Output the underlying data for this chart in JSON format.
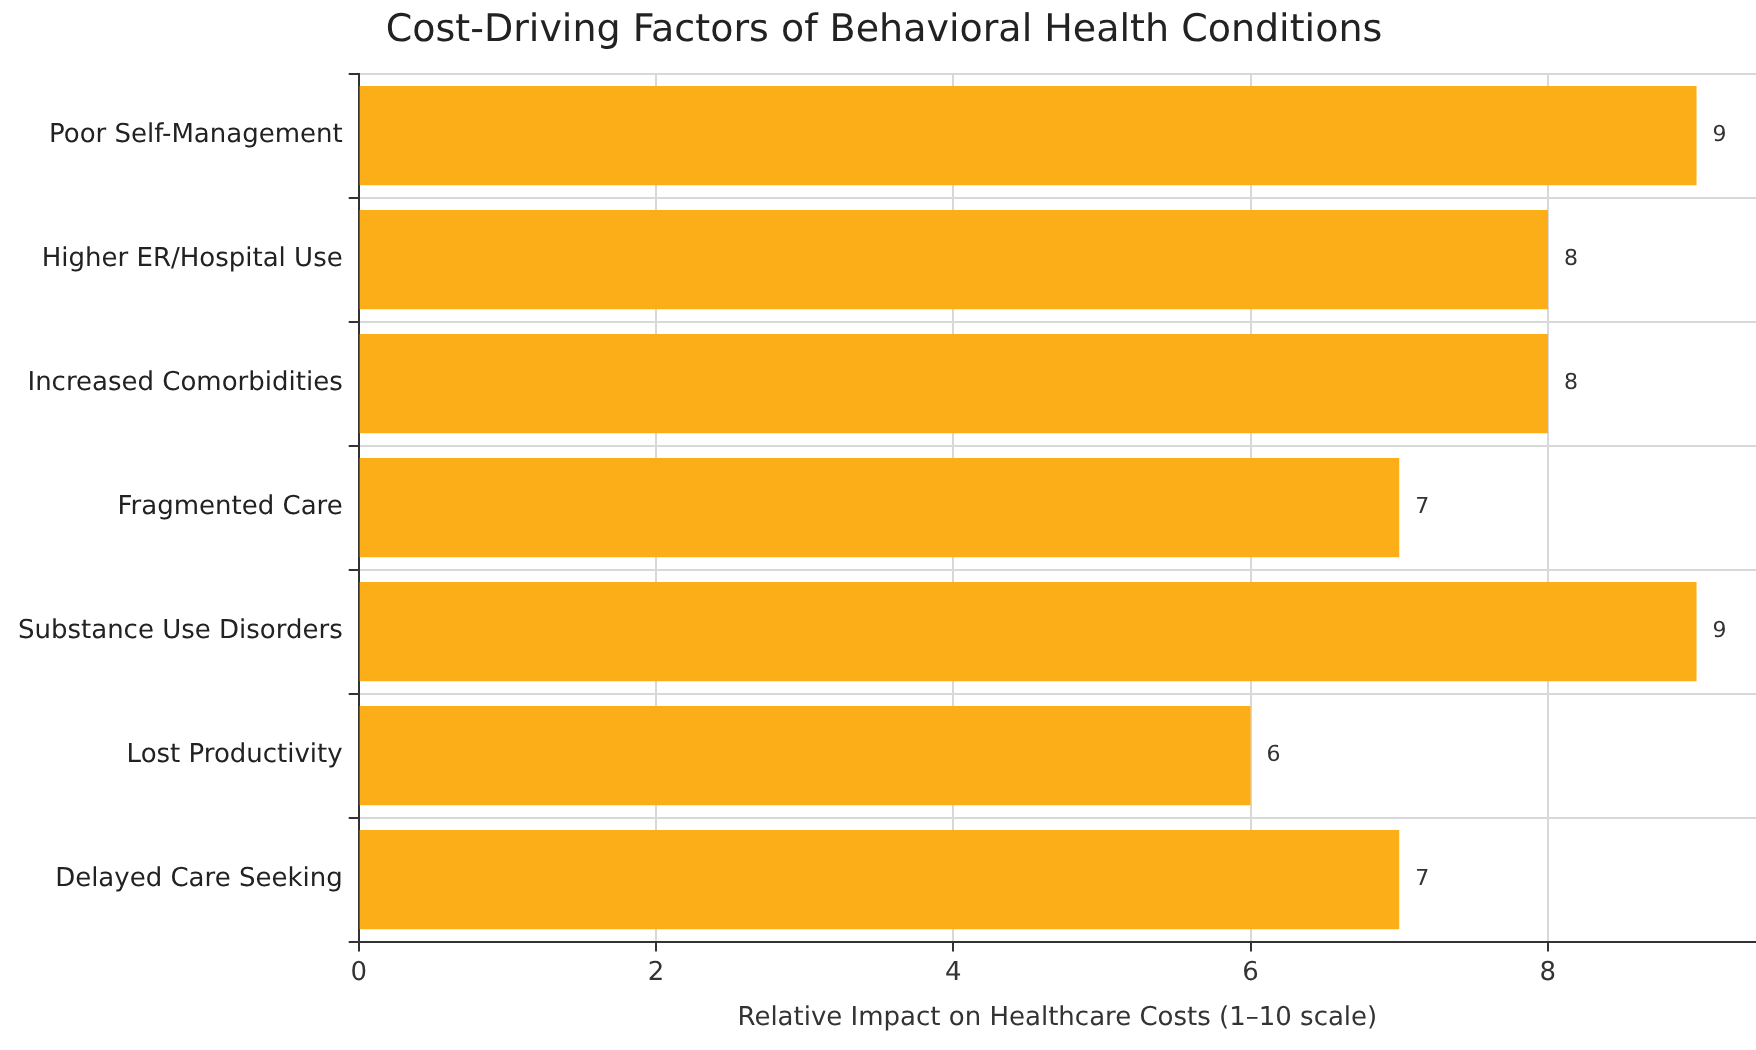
{
  "chart_data": {
    "type": "bar",
    "orientation": "horizontal",
    "title": "Cost-Driving Factors of Behavioral Health Conditions",
    "xlabel": "Relative Impact on Healthcare Costs (1–10 scale)",
    "categories": [
      "Poor Self-Management",
      "Higher ER/Hospital Use",
      "Increased Comorbidities",
      "Fragmented Care",
      "Substance Use Disorders",
      "Lost Productivity",
      "Delayed Care Seeking"
    ],
    "values": [
      9,
      8,
      8,
      7,
      9,
      6,
      7
    ],
    "color": "#fbae17",
    "xlim": [
      0,
      9.4
    ],
    "xticks": [
      0,
      2,
      4,
      6,
      8
    ],
    "grid": true,
    "data_labels": true
  }
}
